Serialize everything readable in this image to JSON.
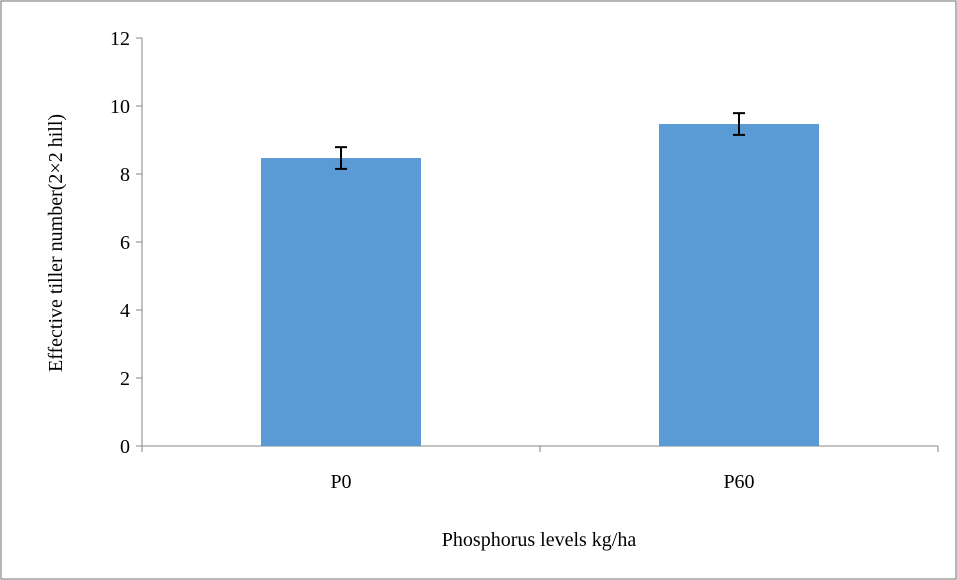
{
  "chart_data": {
    "type": "bar",
    "categories": [
      "P0",
      "P60"
    ],
    "values": [
      8.47,
      9.47
    ],
    "error": [
      0.32,
      0.32
    ],
    "xlabel": "Phosphorus levels kg/ha",
    "ylabel": "Effective tiller number(2×2 hill)",
    "ylim": [
      0,
      12
    ],
    "yticks": [
      "0",
      "2",
      "4",
      "6",
      "8",
      "10",
      "12"
    ],
    "grid": false,
    "legend": "none",
    "colors": {
      "bar": "#5b9bd5",
      "axis": "#868686",
      "frame": "#868686",
      "error_bar": "#000000"
    }
  }
}
